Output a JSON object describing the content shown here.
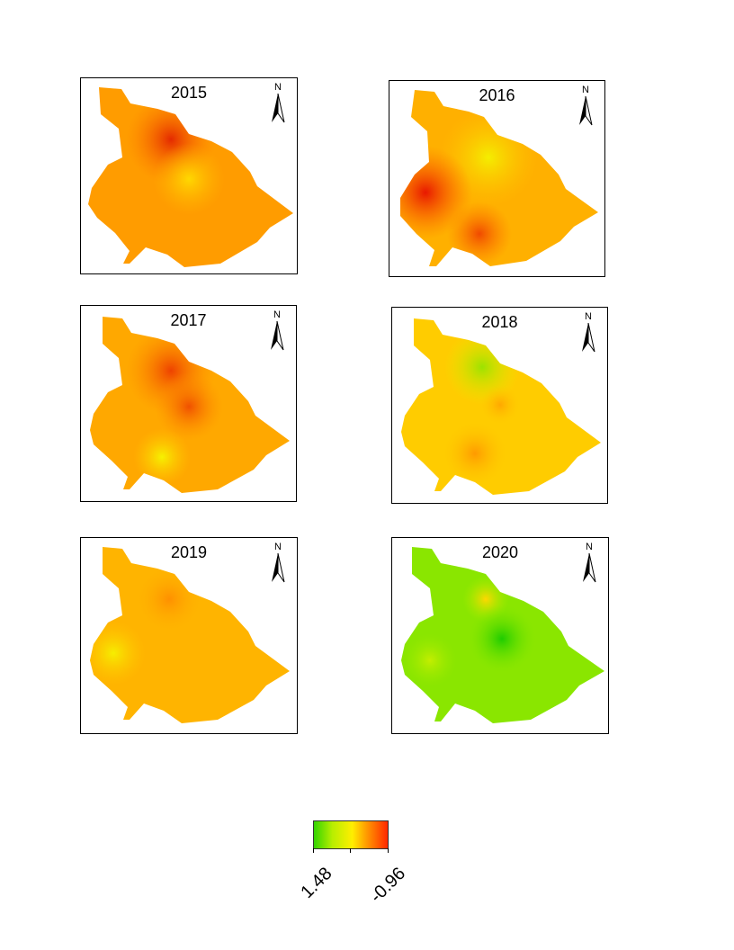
{
  "panels": [
    {
      "year": "2015",
      "north_label": "N"
    },
    {
      "year": "2016",
      "north_label": "N"
    },
    {
      "year": "2017",
      "north_label": "N"
    },
    {
      "year": "2018",
      "north_label": "N"
    },
    {
      "year": "2019",
      "north_label": "N"
    },
    {
      "year": "2020",
      "north_label": "N"
    }
  ],
  "legend": {
    "min_label": "1.48",
    "max_label": "-0.96",
    "colors": [
      "#33d400",
      "#b8ee00",
      "#ffee00",
      "#ffa000",
      "#ff2800"
    ]
  }
}
